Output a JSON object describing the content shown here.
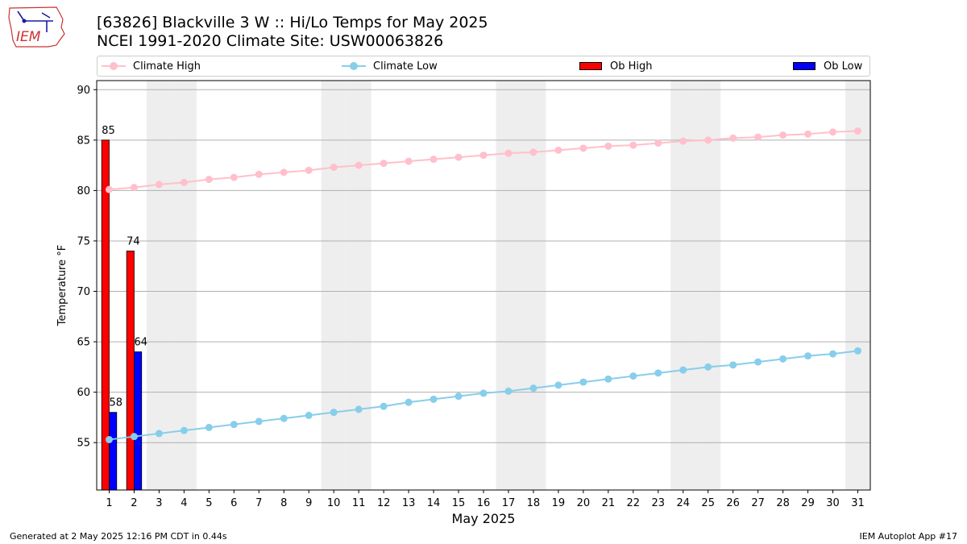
{
  "header": {
    "title_line1": "[63826] Blackville 3 W :: Hi/Lo Temps for May 2025",
    "title_line2": "NCEI 1991-2020 Climate Site: USW00063826",
    "logo_text": "IEM"
  },
  "legend": {
    "items": [
      {
        "label": "Climate High",
        "kind": "line",
        "color": "#ffc0cb"
      },
      {
        "label": "Climate Low",
        "kind": "line",
        "color": "#87ceeb"
      },
      {
        "label": "Ob High",
        "kind": "bar",
        "color": "#ff0000"
      },
      {
        "label": "Ob Low",
        "kind": "bar",
        "color": "#0000ff"
      }
    ]
  },
  "footer": {
    "left": "Generated at 2 May 2025 12:16 PM CDT in 0.44s",
    "right": "IEM Autoplot App #17"
  },
  "chart_data": {
    "type": "bar",
    "xlabel": "May 2025",
    "ylabel": "Temperature °F",
    "xlim": [
      0.5,
      31.5
    ],
    "ylim": [
      50.3,
      90.9
    ],
    "yticks": [
      55,
      60,
      65,
      70,
      75,
      80,
      85,
      90
    ],
    "days": [
      1,
      2,
      3,
      4,
      5,
      6,
      7,
      8,
      9,
      10,
      11,
      12,
      13,
      14,
      15,
      16,
      17,
      18,
      19,
      20,
      21,
      22,
      23,
      24,
      25,
      26,
      27,
      28,
      29,
      30,
      31
    ],
    "weekend_days": [
      3,
      4,
      10,
      11,
      17,
      18,
      24,
      25,
      31
    ],
    "grid": "horizontal",
    "series": [
      {
        "name": "Climate High",
        "kind": "line",
        "color": "#ffc0cb",
        "values": [
          80.1,
          80.3,
          80.6,
          80.8,
          81.1,
          81.3,
          81.6,
          81.8,
          82.0,
          82.3,
          82.5,
          82.7,
          82.9,
          83.1,
          83.3,
          83.5,
          83.7,
          83.8,
          84.0,
          84.2,
          84.4,
          84.5,
          84.7,
          84.9,
          85.0,
          85.2,
          85.3,
          85.5,
          85.6,
          85.8,
          85.9
        ]
      },
      {
        "name": "Climate Low",
        "kind": "line",
        "color": "#87ceeb",
        "values": [
          55.3,
          55.6,
          55.9,
          56.2,
          56.5,
          56.8,
          57.1,
          57.4,
          57.7,
          58.0,
          58.3,
          58.6,
          59.0,
          59.3,
          59.6,
          59.9,
          60.1,
          60.4,
          60.7,
          61.0,
          61.3,
          61.6,
          61.9,
          62.2,
          62.5,
          62.7,
          63.0,
          63.3,
          63.6,
          63.8,
          64.1
        ]
      },
      {
        "name": "Ob High",
        "kind": "bar",
        "color": "#ff0000",
        "days": [
          1,
          2
        ],
        "values": [
          85,
          74
        ],
        "labels": [
          "85",
          "74"
        ]
      },
      {
        "name": "Ob Low",
        "kind": "bar",
        "color": "#0000ff",
        "days": [
          1,
          2
        ],
        "values": [
          58,
          64
        ],
        "labels": [
          "58",
          "64"
        ]
      }
    ]
  }
}
